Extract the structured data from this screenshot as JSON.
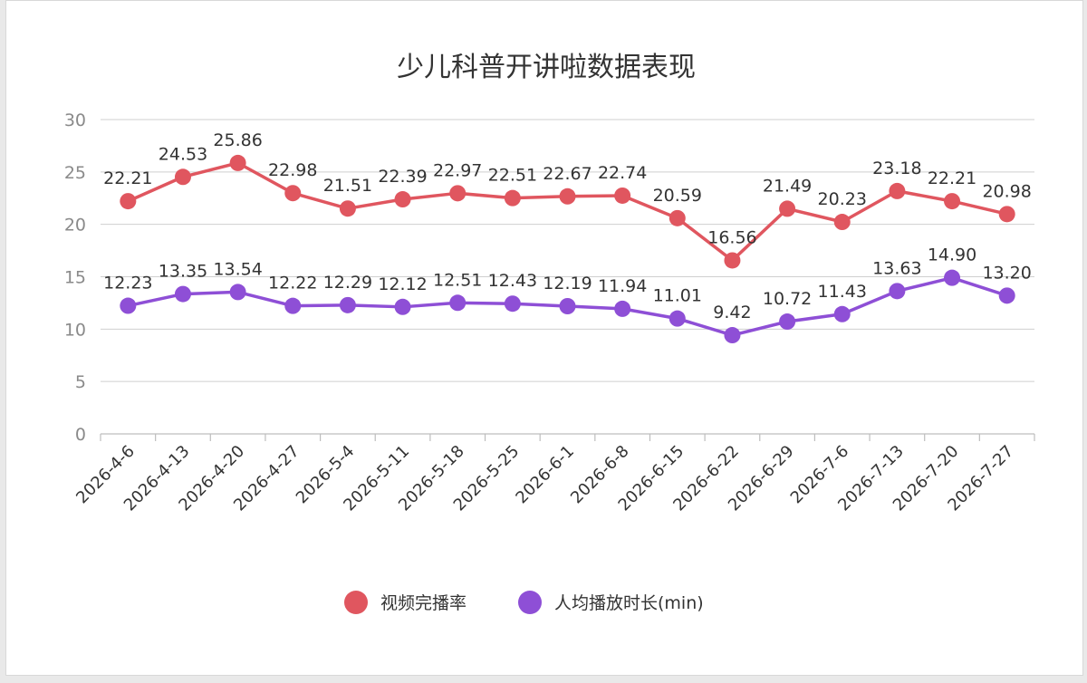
{
  "chart_data": {
    "type": "line",
    "title": "少儿科普开讲啦数据表现",
    "xlabel": "",
    "ylabel": "",
    "ylim": [
      0,
      30
    ],
    "yticks": [
      0,
      5,
      10,
      15,
      20,
      25,
      30
    ],
    "grid": true,
    "legend_position": "bottom",
    "categories": [
      "2026-4-6",
      "2026-4-13",
      "2026-4-20",
      "2026-4-27",
      "2026-5-4",
      "2026-5-11",
      "2026-5-18",
      "2026-5-25",
      "2026-6-1",
      "2026-6-8",
      "2026-6-15",
      "2026-6-22",
      "2026-6-29",
      "2026-7-6",
      "2026-7-13",
      "2026-7-20",
      "2026-7-27"
    ],
    "series": [
      {
        "name": "视频完播率",
        "color": "#e0565f",
        "values": [
          22.21,
          24.53,
          25.86,
          22.98,
          21.51,
          22.39,
          22.97,
          22.51,
          22.67,
          22.74,
          20.59,
          16.56,
          21.49,
          20.23,
          23.18,
          22.21,
          20.98
        ],
        "labels": [
          "22.21",
          "24.53",
          "25.86",
          "22.98",
          "21.51",
          "22.39",
          "22.97",
          "22.51",
          "22.67",
          "22.74",
          "20.59",
          "16.56",
          "21.49",
          "20.23",
          "23.18",
          "22.21",
          "20.98"
        ]
      },
      {
        "name": "人均播放时长(min)",
        "color": "#8e4fd6",
        "values": [
          12.23,
          13.35,
          13.54,
          12.22,
          12.29,
          12.12,
          12.51,
          12.43,
          12.19,
          11.94,
          11.01,
          9.42,
          10.72,
          11.43,
          13.63,
          14.9,
          13.2
        ],
        "labels": [
          "12.23",
          "13.35",
          "13.54",
          "12.22",
          "12.29",
          "12.12",
          "12.51",
          "12.43",
          "12.19",
          "11.94",
          "11.01",
          "9.42",
          "10.72",
          "11.43",
          "13.63",
          "14.90",
          "13.20"
        ]
      }
    ]
  }
}
